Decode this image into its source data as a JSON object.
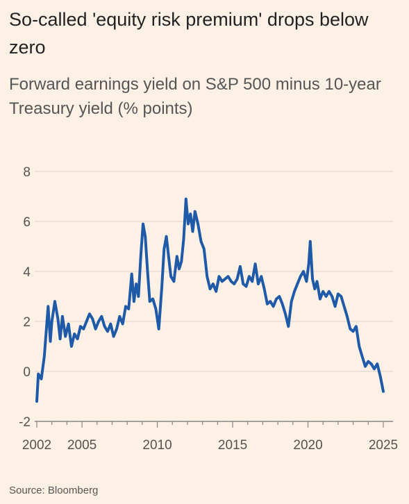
{
  "title": "So-called 'equity risk premium' drops below zero",
  "subtitle": "Forward earnings yield on S&P 500 minus 10-year Treasury yield (% points)",
  "source": "Source: Bloomberg",
  "colors": {
    "background": "#FDF1E6",
    "line": "#1E5AA8",
    "grid": "#E3D8CE",
    "axis": "#8A8480"
  },
  "chart_data": {
    "type": "line",
    "title": "So-called 'equity risk premium' drops below zero",
    "subtitle": "Forward earnings yield on S&P 500 minus 10-year Treasury yield (% points)",
    "xlabel": "",
    "ylabel": "",
    "xlim": [
      2002,
      2025.3
    ],
    "ylim": [
      -2,
      8
    ],
    "yticks": [
      -2,
      0,
      2,
      4,
      6,
      8
    ],
    "xticks": [
      2002,
      2005,
      2010,
      2015,
      2020,
      2025
    ],
    "grid": true,
    "series": [
      {
        "x": [
          2002.0,
          2002.1,
          2002.3,
          2002.5,
          2002.6,
          2002.75,
          2002.9,
          2003.0,
          2003.2,
          2003.4,
          2003.55,
          2003.7,
          2003.9,
          2004.1,
          2004.3,
          2004.5,
          2004.7,
          2004.9,
          2005.1,
          2005.3,
          2005.5,
          2005.7,
          2005.9,
          2006.1,
          2006.3,
          2006.5,
          2006.7,
          2006.9,
          2007.1,
          2007.3,
          2007.5,
          2007.7,
          2007.9,
          2008.1,
          2008.3,
          2008.45,
          2008.6,
          2008.75,
          2008.9,
          2009.05,
          2009.2,
          2009.35,
          2009.5,
          2009.7,
          2009.9,
          2010.1,
          2010.3,
          2010.45,
          2010.6,
          2010.75,
          2010.9,
          2011.1,
          2011.3,
          2011.45,
          2011.6,
          2011.75,
          2011.9,
          2012.05,
          2012.2,
          2012.35,
          2012.5,
          2012.7,
          2012.9,
          2013.1,
          2013.3,
          2013.5,
          2013.7,
          2013.9,
          2014.1,
          2014.3,
          2014.5,
          2014.7,
          2014.9,
          2015.1,
          2015.3,
          2015.5,
          2015.7,
          2015.9,
          2016.1,
          2016.3,
          2016.5,
          2016.7,
          2016.9,
          2017.1,
          2017.3,
          2017.5,
          2017.7,
          2017.9,
          2018.1,
          2018.3,
          2018.5,
          2018.7,
          2018.9,
          2019.1,
          2019.3,
          2019.5,
          2019.7,
          2019.9,
          2020.05,
          2020.15,
          2020.3,
          2020.45,
          2020.6,
          2020.8,
          2021.0,
          2021.2,
          2021.4,
          2021.6,
          2021.8,
          2022.0,
          2022.2,
          2022.4,
          2022.6,
          2022.8,
          2023.0,
          2023.2,
          2023.4,
          2023.6,
          2023.8,
          2024.0,
          2024.2,
          2024.4,
          2024.6,
          2024.8,
          2025.0
        ],
        "values": [
          -1.2,
          -0.1,
          -0.3,
          0.6,
          1.4,
          2.6,
          1.2,
          2.0,
          2.8,
          2.1,
          1.3,
          2.2,
          1.4,
          1.9,
          1.0,
          1.5,
          1.3,
          1.8,
          1.7,
          2.0,
          2.3,
          2.1,
          1.7,
          2.0,
          2.2,
          1.8,
          1.6,
          1.9,
          1.4,
          1.7,
          2.2,
          1.9,
          2.6,
          2.5,
          3.9,
          2.8,
          3.5,
          3.0,
          4.6,
          5.9,
          5.4,
          4.0,
          2.8,
          2.9,
          2.5,
          1.7,
          3.4,
          4.9,
          5.4,
          4.6,
          3.8,
          3.6,
          4.6,
          4.1,
          4.4,
          5.3,
          6.9,
          5.9,
          6.3,
          5.6,
          6.4,
          5.9,
          5.2,
          4.9,
          3.8,
          3.3,
          3.5,
          3.2,
          3.8,
          3.6,
          3.7,
          3.8,
          3.6,
          3.5,
          3.7,
          4.2,
          3.5,
          3.4,
          3.8,
          3.6,
          4.3,
          3.5,
          3.8,
          3.3,
          2.7,
          2.8,
          2.6,
          2.9,
          3.0,
          2.7,
          2.3,
          1.8,
          2.8,
          3.2,
          3.5,
          3.8,
          4.0,
          3.6,
          4.3,
          5.2,
          3.7,
          3.3,
          3.6,
          2.9,
          3.2,
          3.0,
          3.2,
          3.0,
          2.6,
          3.1,
          3.0,
          2.6,
          2.2,
          1.7,
          1.6,
          1.8,
          1.0,
          0.6,
          0.2,
          0.4,
          0.3,
          0.1,
          0.3,
          -0.2,
          -0.8
        ]
      }
    ]
  }
}
